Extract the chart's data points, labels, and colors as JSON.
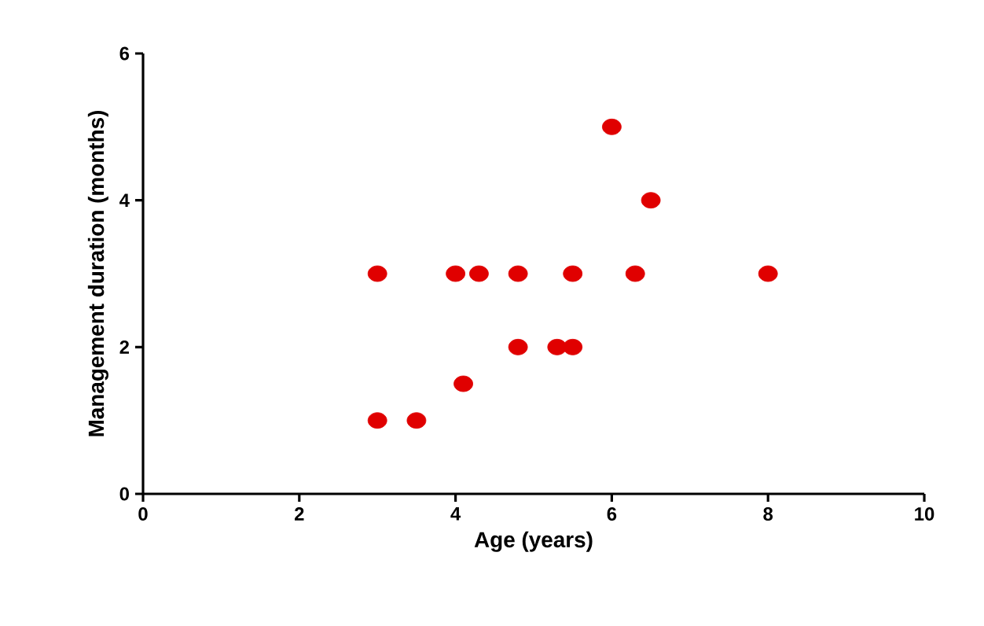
{
  "chart_data": {
    "type": "scatter",
    "xlabel": "Age (years)",
    "ylabel": "Management duration (months)",
    "x": [
      3,
      3,
      3.5,
      4,
      4.1,
      4.3,
      4.8,
      4.8,
      5.3,
      5.5,
      5.5,
      6,
      6.3,
      6.5,
      8
    ],
    "series": [
      {
        "color": "#e00000",
        "values": [
          3,
          1,
          1,
          3,
          1.5,
          3,
          3,
          2,
          2,
          2,
          3,
          5,
          3,
          4,
          3
        ]
      }
    ],
    "xlim": [
      0,
      10
    ],
    "ylim": [
      0,
      6
    ],
    "xticks": [
      0,
      2,
      4,
      6,
      8,
      10
    ],
    "yticks": [
      0,
      2,
      4,
      6
    ],
    "grid": false
  }
}
